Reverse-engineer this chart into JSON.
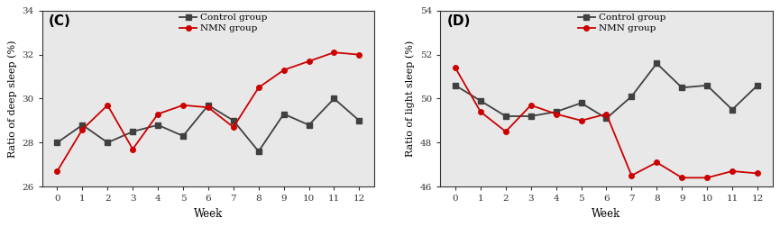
{
  "weeks": [
    0,
    1,
    2,
    3,
    4,
    5,
    6,
    7,
    8,
    9,
    10,
    11,
    12
  ],
  "C": {
    "title": "(C)",
    "ylabel": "Ratio of deep sleep (%)",
    "xlabel": "Week",
    "ylim": [
      26,
      34
    ],
    "yticks": [
      26,
      28,
      30,
      32,
      34
    ],
    "control": [
      28.0,
      28.8,
      28.0,
      28.5,
      28.8,
      28.3,
      29.7,
      29.0,
      27.6,
      29.3,
      28.8,
      30.0,
      29.0
    ],
    "nmn": [
      26.7,
      28.6,
      29.7,
      27.7,
      29.3,
      29.7,
      29.6,
      28.7,
      30.5,
      31.3,
      31.7,
      32.1,
      32.0
    ]
  },
  "D": {
    "title": "(D)",
    "ylabel": "Ratio of light sleep (%)",
    "xlabel": "Week",
    "ylim": [
      46,
      54
    ],
    "yticks": [
      46,
      48,
      50,
      52,
      54
    ],
    "control": [
      50.6,
      49.9,
      49.2,
      49.2,
      49.4,
      49.8,
      49.1,
      50.1,
      51.6,
      50.5,
      50.6,
      49.5,
      50.6
    ],
    "nmn": [
      51.4,
      49.4,
      48.5,
      49.7,
      49.3,
      49.0,
      49.3,
      46.5,
      47.1,
      46.4,
      46.4,
      46.7,
      46.6
    ]
  },
  "control_color": "#404040",
  "nmn_color": "#cc0000",
  "legend_labels": [
    "Control group",
    "NMN group"
  ],
  "marker_control": "s",
  "marker_nmn": "o",
  "markersize": 4,
  "linewidth": 1.3,
  "bg_color": "#e8e8e8",
  "fig_bg": "#ffffff"
}
